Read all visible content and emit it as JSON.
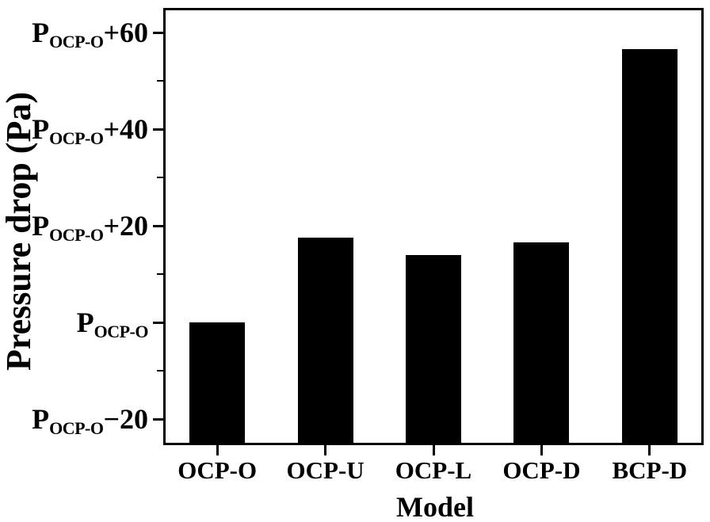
{
  "figure": {
    "background": "#ffffff"
  },
  "chart_data": {
    "type": "bar",
    "title": "",
    "xlabel": "Model",
    "ylabel": "Pressure drop (Pa)",
    "categories": [
      "OCP-O",
      "OCP-U",
      "OCP-L",
      "OCP-D",
      "BCP-D"
    ],
    "values": [
      0,
      17.5,
      14,
      16.5,
      56.5
    ],
    "values_relative_to": "P_OCP-O",
    "ylim": [
      -25.4,
      65.1
    ],
    "grid": false,
    "legend": false,
    "bar_color": "#000000",
    "axis_color": "#000000",
    "text_color": "#000000",
    "yticks": [
      {
        "value": 60,
        "base": "P",
        "subscript": "OCP-O",
        "offset": "+60"
      },
      {
        "value": 40,
        "base": "P",
        "subscript": "OCP-O",
        "offset": "+40"
      },
      {
        "value": 20,
        "base": "P",
        "subscript": "OCP-O",
        "offset": "+20"
      },
      {
        "value": 0,
        "base": "P",
        "subscript": "OCP-O",
        "offset": ""
      },
      {
        "value": -20,
        "base": "P",
        "subscript": "OCP-O",
        "offset": "−20"
      }
    ],
    "minor_yticks": [
      50,
      30,
      10,
      -10
    ]
  }
}
